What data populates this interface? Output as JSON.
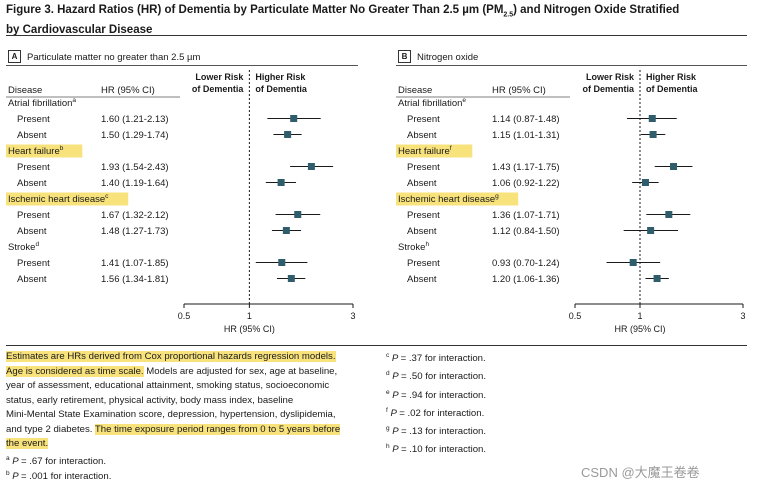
{
  "title": {
    "line1_pre": "Figure 3. Hazard Ratios (HR) of Dementia by Particulate Matter No Greater Than 2.5 µm (PM",
    "line1_sub": "2.5",
    "line1_post": ") and Nitrogen Oxide Stratified",
    "line2": "by Cardiovascular Disease"
  },
  "colors": {
    "marker": "#2f5d6b",
    "highlight": "#f7e27c",
    "text": "#1a1a1a",
    "ci_line": "#1a1a1a"
  },
  "chart_data": [
    {
      "type": "forest",
      "panel_letter": "A",
      "panel_title": "Particulate matter no greater than 2.5 µm",
      "col_disease": "Disease",
      "col_hr": "HR (95% CI)",
      "favor_left_line1": "Lower Risk",
      "favor_left_line2": "of Dementia",
      "favor_right_line1": "Higher Risk",
      "favor_right_line2": "of Dementia",
      "xlabel": "HR (95% CI)",
      "xscale": "log",
      "xlim": [
        0.5,
        3
      ],
      "xticks": [
        0.5,
        1,
        3
      ],
      "xtick_labels": [
        "0.5",
        "1",
        "3"
      ],
      "reference_line": 1,
      "groups": [
        {
          "name": "Atrial fibrillation",
          "sup": "a",
          "highlight": false,
          "rows": [
            {
              "label": "Present",
              "text": "1.60 (1.21-2.13)",
              "hr": 1.6,
              "lo": 1.21,
              "hi": 2.13
            },
            {
              "label": "Absent",
              "text": "1.50 (1.29-1.74)",
              "hr": 1.5,
              "lo": 1.29,
              "hi": 1.74
            }
          ]
        },
        {
          "name": "Heart failure",
          "sup": "b",
          "highlight": true,
          "rows": [
            {
              "label": "Present",
              "text": "1.93 (1.54-2.43)",
              "hr": 1.93,
              "lo": 1.54,
              "hi": 2.43
            },
            {
              "label": "Absent",
              "text": "1.40 (1.19-1.64)",
              "hr": 1.4,
              "lo": 1.19,
              "hi": 1.64
            }
          ]
        },
        {
          "name": "Ischemic heart disease",
          "sup": "c",
          "highlight": true,
          "rows": [
            {
              "label": "Present",
              "text": "1.67 (1.32-2.12)",
              "hr": 1.67,
              "lo": 1.32,
              "hi": 2.12
            },
            {
              "label": "Absent",
              "text": "1.48 (1.27-1.73)",
              "hr": 1.48,
              "lo": 1.27,
              "hi": 1.73
            }
          ]
        },
        {
          "name": "Stroke",
          "sup": "d",
          "highlight": false,
          "rows": [
            {
              "label": "Present",
              "text": "1.41 (1.07-1.85)",
              "hr": 1.41,
              "lo": 1.07,
              "hi": 1.85
            },
            {
              "label": "Absent",
              "text": "1.56 (1.34-1.81)",
              "hr": 1.56,
              "lo": 1.34,
              "hi": 1.81
            }
          ]
        }
      ]
    },
    {
      "type": "forest",
      "panel_letter": "B",
      "panel_title": "Nitrogen oxide",
      "col_disease": "Disease",
      "col_hr": "HR (95% CI)",
      "favor_left_line1": "Lower Risk",
      "favor_left_line2": "of Dementia",
      "favor_right_line1": "Higher Risk",
      "favor_right_line2": "of Dementia",
      "xlabel": "HR (95% CI)",
      "xscale": "log",
      "xlim": [
        0.5,
        3
      ],
      "xticks": [
        0.5,
        1,
        3
      ],
      "xtick_labels": [
        "0.5",
        "1",
        "3"
      ],
      "reference_line": 1,
      "groups": [
        {
          "name": "Atrial fibrillation",
          "sup": "e",
          "highlight": false,
          "rows": [
            {
              "label": "Present",
              "text": "1.14 (0.87-1.48)",
              "hr": 1.14,
              "lo": 0.87,
              "hi": 1.48
            },
            {
              "label": "Absent",
              "text": "1.15 (1.01-1.31)",
              "hr": 1.15,
              "lo": 1.01,
              "hi": 1.31
            }
          ]
        },
        {
          "name": "Heart failure",
          "sup": "f",
          "highlight": true,
          "rows": [
            {
              "label": "Present",
              "text": "1.43 (1.17-1.75)",
              "hr": 1.43,
              "lo": 1.17,
              "hi": 1.75
            },
            {
              "label": "Absent",
              "text": "1.06 (0.92-1.22)",
              "hr": 1.06,
              "lo": 0.92,
              "hi": 1.22
            }
          ]
        },
        {
          "name": "Ischemic heart disease",
          "sup": "g",
          "highlight": true,
          "rows": [
            {
              "label": "Present",
              "text": "1.36 (1.07-1.71)",
              "hr": 1.36,
              "lo": 1.07,
              "hi": 1.71
            },
            {
              "label": "Absent",
              "text": "1.12 (0.84-1.50)",
              "hr": 1.12,
              "lo": 0.84,
              "hi": 1.5
            }
          ]
        },
        {
          "name": "Stroke",
          "sup": "h",
          "highlight": false,
          "rows": [
            {
              "label": "Present",
              "text": "0.93 (0.70-1.24)",
              "hr": 0.93,
              "lo": 0.7,
              "hi": 1.24
            },
            {
              "label": "Absent",
              "text": "1.20 (1.06-1.36)",
              "hr": 1.2,
              "lo": 1.06,
              "hi": 1.36
            }
          ]
        }
      ]
    }
  ],
  "footnote": {
    "lines": [
      [
        {
          "t": "Estimates are HRs derived from Cox proportional hazards regression models.",
          "hl": true
        }
      ],
      [
        {
          "t": "Age is considered as time scale.",
          "hl": true
        },
        {
          "t": " Models are adjusted for sex, age at baseline,",
          "hl": false
        }
      ],
      [
        {
          "t": "year of assessment, educational attainment, smoking status, socioeconomic",
          "hl": false
        }
      ],
      [
        {
          "t": "status, early retirement, physical activity, body mass index, baseline",
          "hl": false
        }
      ],
      [
        {
          "t": "Mini-Mental State Examination score, depression, hypertension, dyslipidemia,",
          "hl": false
        }
      ],
      [
        {
          "t": "and type 2 diabetes. ",
          "hl": false
        },
        {
          "t": "The time exposure period ranges from 0 to 5 years before",
          "hl": true
        }
      ],
      [
        {
          "t": "the event.",
          "hl": true
        }
      ]
    ],
    "interaction_left": [
      {
        "sup": "a",
        "text": "= .67 for interaction."
      },
      {
        "sup": "b",
        "text": "= .001 for interaction."
      }
    ],
    "interaction_right": [
      {
        "sup": "c",
        "text": "= .37 for interaction."
      },
      {
        "sup": "d",
        "text": "= .50 for interaction."
      },
      {
        "sup": "e",
        "text": "= .94 for interaction."
      },
      {
        "sup": "f",
        "text": "= .02 for interaction."
      },
      {
        "sup": "g",
        "text": "= .13 for interaction."
      },
      {
        "sup": "h",
        "text": "= .10 for interaction."
      }
    ],
    "p_letter": "P"
  },
  "watermark": "CSDN @大魔王卷卷"
}
